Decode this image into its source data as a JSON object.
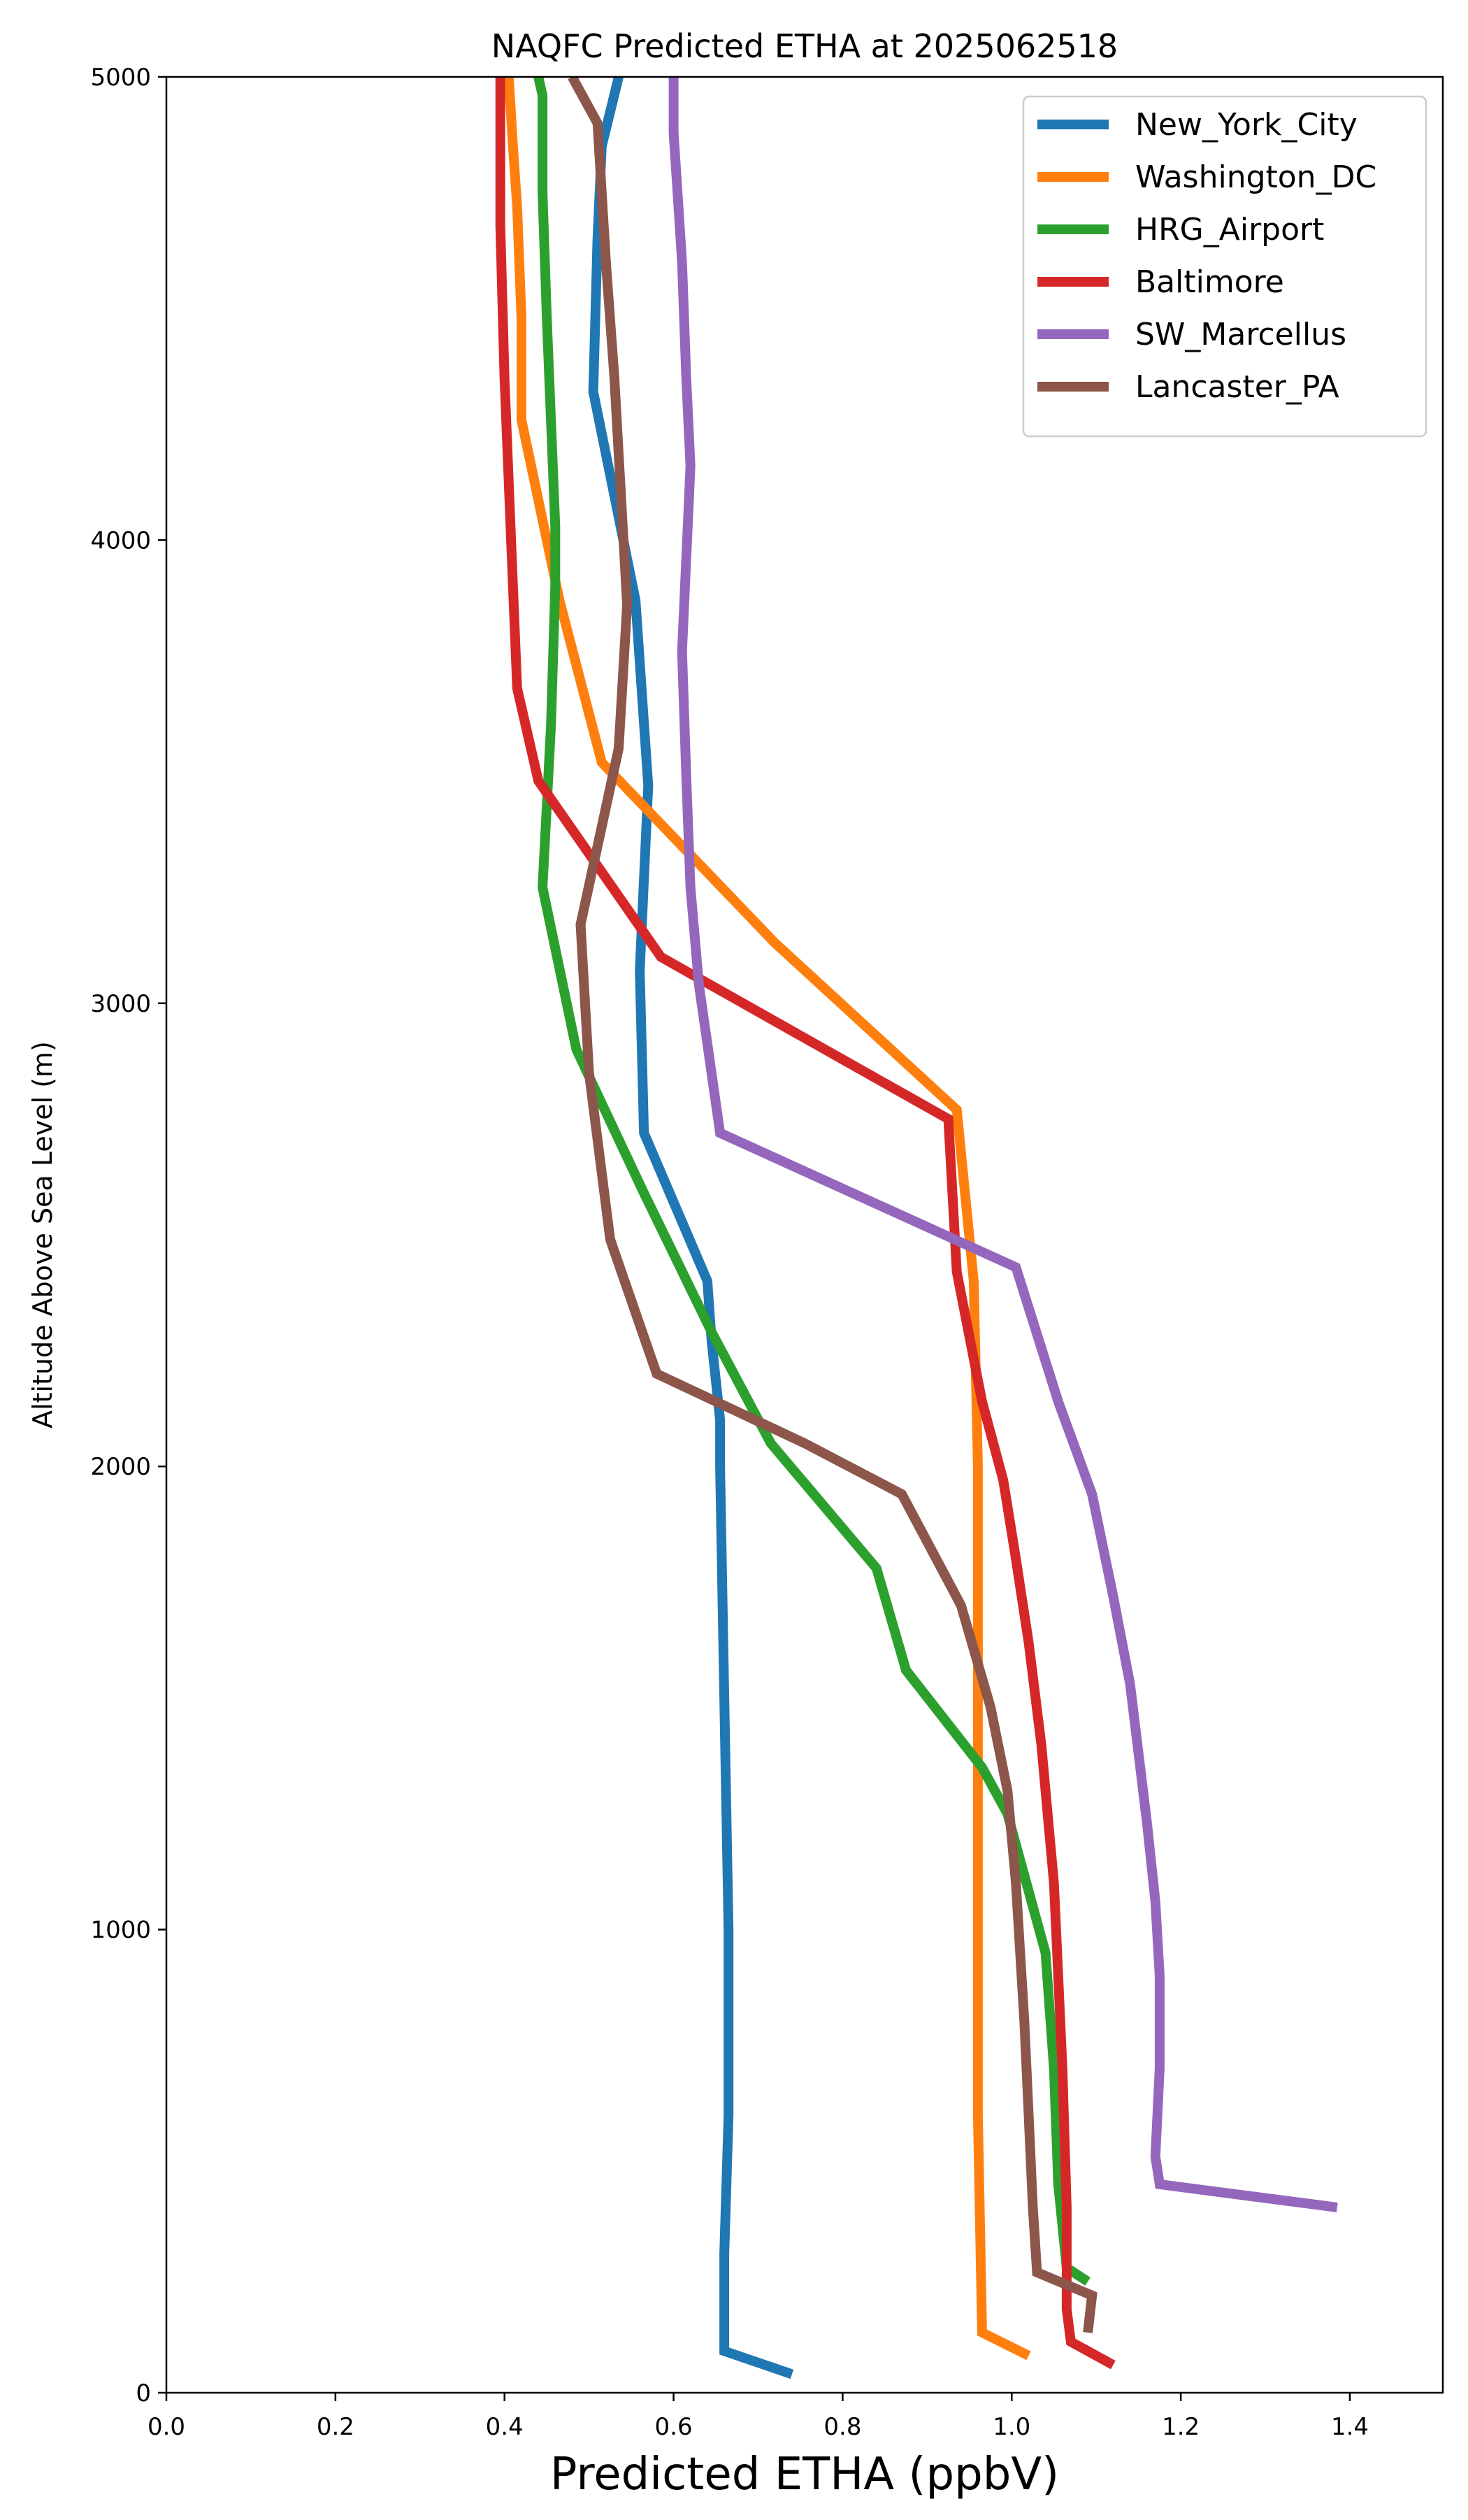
{
  "chart_data": {
    "type": "line",
    "title": "NAQFC Predicted ETHA at 2025062518",
    "xlabel": "Predicted ETHA (ppbV)",
    "ylabel": "Altitude Above Sea Level (m)",
    "xlim": [
      0.0,
      1.51
    ],
    "ylim": [
      0,
      5000
    ],
    "xticks": [
      "0.0",
      "0.2",
      "0.4",
      "0.6",
      "0.8",
      "1.0",
      "1.2",
      "1.4"
    ],
    "yticks": [
      "0",
      "1000",
      "2000",
      "3000",
      "4000",
      "5000"
    ],
    "grid": false,
    "legend_position": "top-right",
    "series": [
      {
        "name": "New_York_City",
        "color": "#1f77b4",
        "points": [
          [
            0.74,
            40
          ],
          [
            0.66,
            90
          ],
          [
            0.66,
            300
          ],
          [
            0.665,
            600
          ],
          [
            0.665,
            1000
          ],
          [
            0.66,
            1500
          ],
          [
            0.655,
            2000
          ],
          [
            0.655,
            2100
          ],
          [
            0.645,
            2270
          ],
          [
            0.64,
            2400
          ],
          [
            0.565,
            2720
          ],
          [
            0.56,
            3070
          ],
          [
            0.57,
            3470
          ],
          [
            0.555,
            3870
          ],
          [
            0.505,
            4320
          ],
          [
            0.51,
            4650
          ],
          [
            0.515,
            4850
          ],
          [
            0.535,
            5000
          ]
        ]
      },
      {
        "name": "Washington_DC",
        "color": "#ff7f0e",
        "points": [
          [
            1.02,
            80
          ],
          [
            0.965,
            130
          ],
          [
            0.96,
            600
          ],
          [
            0.96,
            1000
          ],
          [
            0.96,
            1500
          ],
          [
            0.96,
            2000
          ],
          [
            0.955,
            2400
          ],
          [
            0.935,
            2770
          ],
          [
            0.72,
            3130
          ],
          [
            0.515,
            3520
          ],
          [
            0.465,
            3870
          ],
          [
            0.42,
            4260
          ],
          [
            0.42,
            4480
          ],
          [
            0.415,
            4720
          ],
          [
            0.41,
            4850
          ],
          [
            0.405,
            5000
          ]
        ]
      },
      {
        "name": "HRG_Airport",
        "color": "#2ca02c",
        "points": [
          [
            1.09,
            240
          ],
          [
            1.065,
            270
          ],
          [
            1.055,
            450
          ],
          [
            1.05,
            700
          ],
          [
            1.04,
            950
          ],
          [
            0.995,
            1250
          ],
          [
            0.965,
            1350
          ],
          [
            0.875,
            1560
          ],
          [
            0.84,
            1780
          ],
          [
            0.715,
            2050
          ],
          [
            0.645,
            2290
          ],
          [
            0.565,
            2590
          ],
          [
            0.485,
            2900
          ],
          [
            0.445,
            3250
          ],
          [
            0.455,
            3600
          ],
          [
            0.46,
            3900
          ],
          [
            0.46,
            4030
          ],
          [
            0.45,
            4480
          ],
          [
            0.445,
            4750
          ],
          [
            0.445,
            4960
          ],
          [
            0.44,
            5000
          ]
        ]
      },
      {
        "name": "Baltimore",
        "color": "#d62728",
        "points": [
          [
            1.12,
            60
          ],
          [
            1.07,
            110
          ],
          [
            1.065,
            180
          ],
          [
            1.065,
            400
          ],
          [
            1.06,
            700
          ],
          [
            1.055,
            900
          ],
          [
            1.05,
            1100
          ],
          [
            1.035,
            1400
          ],
          [
            1.02,
            1620
          ],
          [
            1.005,
            1800
          ],
          [
            0.99,
            1970
          ],
          [
            0.965,
            2140
          ],
          [
            0.935,
            2420
          ],
          [
            0.925,
            2750
          ],
          [
            0.585,
            3100
          ],
          [
            0.44,
            3480
          ],
          [
            0.415,
            3680
          ],
          [
            0.41,
            3900
          ],
          [
            0.4,
            4350
          ],
          [
            0.395,
            4680
          ],
          [
            0.395,
            5000
          ]
        ]
      },
      {
        "name": "SW_Marcellus",
        "color": "#9467bd",
        "points": [
          [
            1.385,
            400
          ],
          [
            1.175,
            450
          ],
          [
            1.17,
            510
          ],
          [
            1.175,
            700
          ],
          [
            1.175,
            900
          ],
          [
            1.17,
            1060
          ],
          [
            1.16,
            1230
          ],
          [
            1.14,
            1530
          ],
          [
            1.12,
            1720
          ],
          [
            1.095,
            1940
          ],
          [
            1.055,
            2140
          ],
          [
            1.005,
            2430
          ],
          [
            0.655,
            2720
          ],
          [
            0.63,
            3040
          ],
          [
            0.62,
            3250
          ],
          [
            0.615,
            3490
          ],
          [
            0.61,
            3760
          ],
          [
            0.62,
            4160
          ],
          [
            0.615,
            4350
          ],
          [
            0.61,
            4600
          ],
          [
            0.6,
            4880
          ],
          [
            0.6,
            5000
          ]
        ]
      },
      {
        "name": "Lancaster_PA",
        "color": "#8c564b",
        "points": [
          [
            1.09,
            130
          ],
          [
            1.095,
            210
          ],
          [
            1.03,
            260
          ],
          [
            1.025,
            400
          ],
          [
            1.02,
            600
          ],
          [
            1.015,
            800
          ],
          [
            1.005,
            1100
          ],
          [
            0.995,
            1300
          ],
          [
            0.975,
            1480
          ],
          [
            0.94,
            1700
          ],
          [
            0.87,
            1940
          ],
          [
            0.755,
            2050
          ],
          [
            0.58,
            2200
          ],
          [
            0.525,
            2490
          ],
          [
            0.5,
            2850
          ],
          [
            0.49,
            3170
          ],
          [
            0.535,
            3550
          ],
          [
            0.545,
            3860
          ],
          [
            0.53,
            4350
          ],
          [
            0.52,
            4600
          ],
          [
            0.51,
            4900
          ],
          [
            0.48,
            5000
          ]
        ]
      }
    ]
  }
}
